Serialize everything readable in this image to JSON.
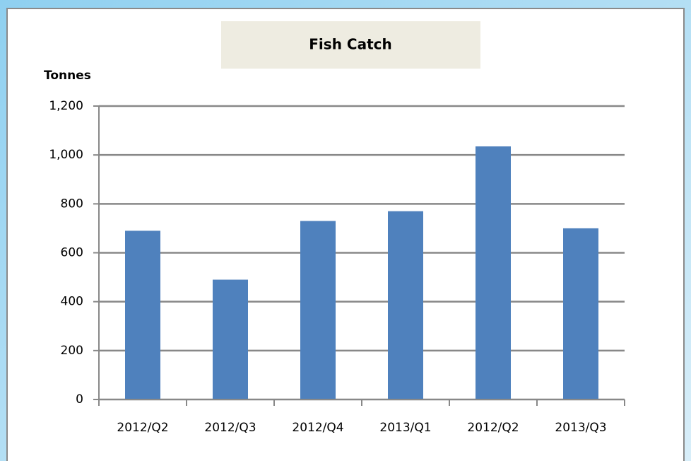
{
  "chart_data": {
    "type": "bar",
    "title": "Fish Catch",
    "y_label": "Tonnes",
    "categories": [
      "2012/Q2",
      "2012/Q3",
      "2012/Q4",
      "2013/Q1",
      "2012/Q2",
      "2013/Q3"
    ],
    "values": [
      690,
      490,
      730,
      770,
      1035,
      700
    ],
    "color": "#4f81bd",
    "ylim": [
      0,
      1200
    ],
    "yticks": [
      0,
      200,
      400,
      600,
      800,
      {
        "value": 1000,
        "label": "1,000"
      },
      {
        "value": 1200,
        "label": "1,200"
      }
    ],
    "grid": true
  }
}
